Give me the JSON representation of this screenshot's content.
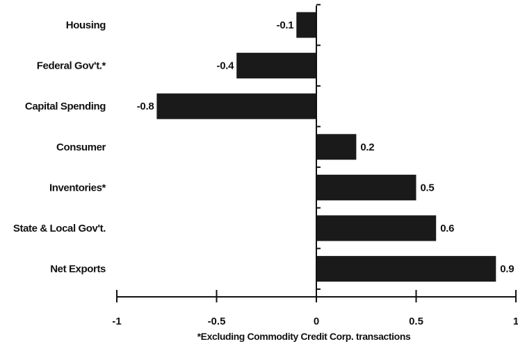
{
  "chart_data": {
    "type": "bar",
    "orientation": "horizontal",
    "categories": [
      "Housing",
      "Federal Gov't.*",
      "Capital Spending",
      "Consumer",
      "Inventories*",
      "State & Local Gov't.",
      "Net Exports"
    ],
    "values": [
      -0.1,
      -0.4,
      -0.8,
      0.2,
      0.5,
      0.6,
      0.9
    ],
    "value_labels": [
      "-0.1",
      "-0.4",
      "-0.8",
      "0.2",
      "0.5",
      "0.6",
      "0.9"
    ],
    "xlim": [
      -1,
      1
    ],
    "xticks": [
      -1,
      -0.5,
      0,
      0.5,
      1
    ],
    "xtick_labels": [
      "-1",
      "-0.5",
      "0",
      "0.5",
      "1"
    ],
    "title": "",
    "xlabel": "",
    "ylabel": "",
    "footnote": "*Excluding Commodity Credit Corp. transactions",
    "grid": false,
    "bar_color": "#1a1a1a",
    "text_color": "#111111",
    "background": "#ffffff"
  }
}
